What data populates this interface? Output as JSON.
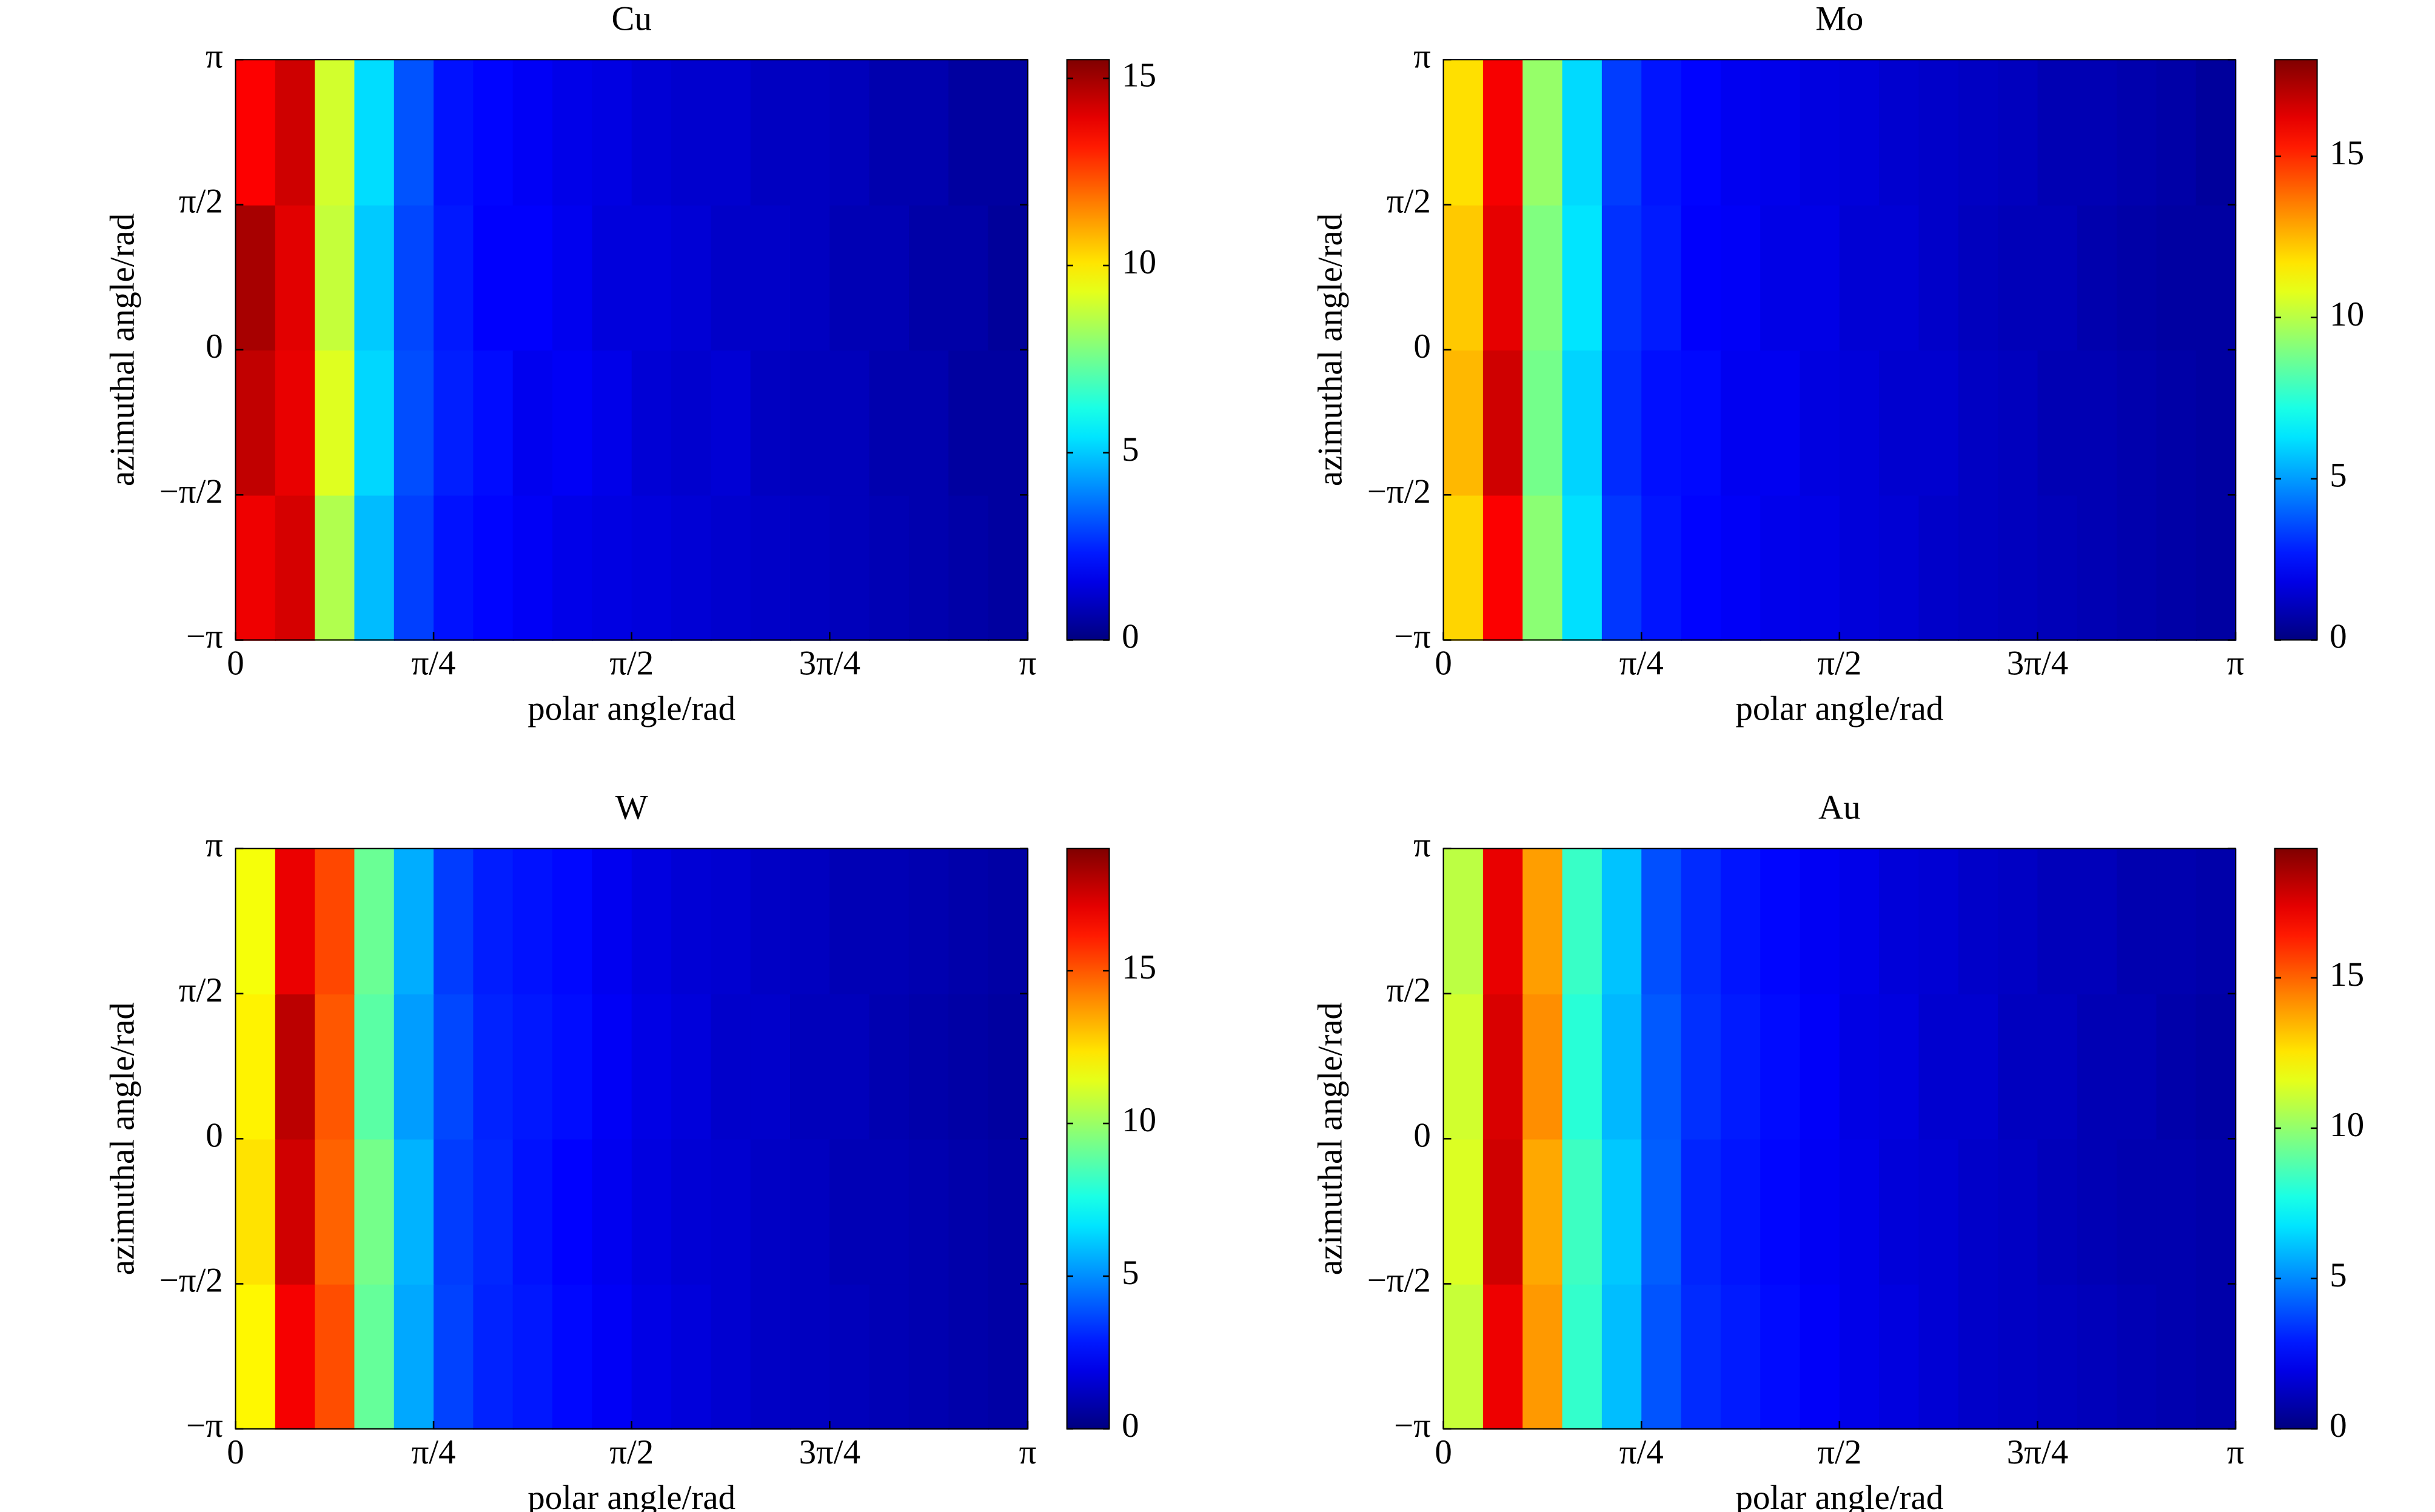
{
  "chart_data": [
    {
      "type": "heatmap",
      "title": "Cu",
      "xlabel": "polar angle/rad",
      "ylabel": "azimuthal angle/rad",
      "colormap": "jet",
      "xlim": [
        0,
        3.1416
      ],
      "ylim": [
        -3.1416,
        3.1416
      ],
      "xticks": [
        0,
        {
          "value": 0.7854,
          "label": "π/4"
        },
        {
          "value": 1.5708,
          "label": "π/2"
        },
        {
          "value": 2.3562,
          "label": "3π/4"
        },
        {
          "value": 3.1416,
          "label": "π"
        }
      ],
      "yticks": [
        {
          "value": -3.1416,
          "label": "−π"
        },
        {
          "value": -1.5708,
          "label": "−π/2"
        },
        0,
        {
          "value": 1.5708,
          "label": "π/2"
        },
        {
          "value": 3.1416,
          "label": "π"
        }
      ],
      "clim": [
        0,
        15.5
      ],
      "cticks": [
        0,
        5,
        10,
        15
      ],
      "z": [
        [
          13.8,
          14.2,
          8.5,
          4.8,
          2.9,
          2.2,
          2.0,
          1.8,
          1.6,
          1.5,
          1.4,
          1.3,
          1.2,
          1.1,
          1.0,
          0.9,
          0.8,
          0.7,
          0.6,
          0.5
        ],
        [
          14.5,
          13.9,
          9.2,
          5.2,
          3.1,
          2.4,
          2.1,
          1.7,
          1.8,
          1.6,
          1.3,
          1.2,
          1.3,
          1.0,
          0.9,
          0.9,
          0.7,
          0.7,
          0.5,
          0.5
        ],
        [
          14.9,
          14.0,
          8.8,
          5.0,
          3.0,
          2.3,
          1.9,
          1.9,
          1.7,
          1.4,
          1.4,
          1.3,
          1.1,
          1.1,
          1.0,
          0.8,
          0.8,
          0.6,
          0.6,
          0.4
        ],
        [
          13.6,
          14.3,
          9.0,
          5.3,
          3.2,
          2.2,
          2.0,
          1.8,
          1.6,
          1.5,
          1.3,
          1.2,
          1.2,
          1.0,
          1.0,
          0.9,
          0.7,
          0.7,
          0.5,
          0.5
        ]
      ]
    },
    {
      "type": "heatmap",
      "title": "Mo",
      "xlabel": "polar angle/rad",
      "ylabel": "azimuthal angle/rad",
      "colormap": "jet",
      "xlim": [
        0,
        3.1416
      ],
      "ylim": [
        -3.1416,
        3.1416
      ],
      "xticks": [
        0,
        {
          "value": 0.7854,
          "label": "π/4"
        },
        {
          "value": 1.5708,
          "label": "π/2"
        },
        {
          "value": 2.3562,
          "label": "3π/4"
        },
        {
          "value": 3.1416,
          "label": "π"
        }
      ],
      "yticks": [
        {
          "value": -3.1416,
          "label": "−π"
        },
        {
          "value": -1.5708,
          "label": "−π/2"
        },
        0,
        {
          "value": 1.5708,
          "label": "π/2"
        },
        {
          "value": 3.1416,
          "label": "π"
        }
      ],
      "clim": [
        0,
        18
      ],
      "cticks": [
        0,
        5,
        10,
        15
      ],
      "z": [
        [
          12.0,
          15.8,
          9.2,
          6.2,
          3.2,
          2.6,
          2.3,
          2.1,
          1.9,
          1.8,
          1.6,
          1.5,
          1.3,
          1.2,
          1.1,
          1.0,
          0.9,
          0.8,
          0.7,
          0.6
        ],
        [
          12.5,
          16.6,
          8.8,
          6.0,
          3.0,
          2.5,
          2.4,
          2.0,
          2.0,
          1.7,
          1.6,
          1.4,
          1.4,
          1.2,
          1.1,
          0.9,
          0.9,
          0.8,
          0.7,
          0.6
        ],
        [
          12.2,
          16.2,
          9.0,
          6.3,
          3.1,
          2.7,
          2.2,
          2.1,
          1.8,
          1.8,
          1.5,
          1.5,
          1.3,
          1.1,
          1.0,
          1.0,
          0.8,
          0.7,
          0.6,
          0.6
        ],
        [
          11.8,
          15.9,
          9.4,
          6.1,
          3.3,
          2.6,
          2.3,
          2.0,
          1.9,
          1.7,
          1.6,
          1.4,
          1.3,
          1.2,
          1.1,
          0.9,
          0.9,
          0.8,
          0.7,
          0.5
        ]
      ]
    },
    {
      "type": "heatmap",
      "title": "W",
      "xlabel": "polar angle/rad",
      "ylabel": "azimuthal angle/rad",
      "colormap": "jet",
      "xlim": [
        0,
        3.1416
      ],
      "ylim": [
        -3.1416,
        3.1416
      ],
      "xticks": [
        0,
        {
          "value": 0.7854,
          "label": "π/4"
        },
        {
          "value": 1.5708,
          "label": "π/2"
        },
        {
          "value": 2.3562,
          "label": "3π/4"
        },
        {
          "value": 3.1416,
          "label": "π"
        }
      ],
      "yticks": [
        {
          "value": -3.1416,
          "label": "−π"
        },
        {
          "value": -1.5708,
          "label": "−π/2"
        },
        0,
        {
          "value": 1.5708,
          "label": "π/2"
        },
        {
          "value": 3.1416,
          "label": "π"
        }
      ],
      "clim": [
        0,
        19
      ],
      "cticks": [
        0,
        5,
        10,
        15
      ],
      "z": [
        [
          12.0,
          16.8,
          15.2,
          9.0,
          5.5,
          3.6,
          3.0,
          2.8,
          2.5,
          2.2,
          1.9,
          1.7,
          1.5,
          1.3,
          1.2,
          1.1,
          1.0,
          0.9,
          0.8,
          0.7
        ],
        [
          12.4,
          17.5,
          14.8,
          9.3,
          5.7,
          3.5,
          3.1,
          2.7,
          2.4,
          2.1,
          1.8,
          1.6,
          1.5,
          1.3,
          1.2,
          1.0,
          1.0,
          0.9,
          0.8,
          0.7
        ],
        [
          12.1,
          17.9,
          15.0,
          8.8,
          5.3,
          3.7,
          3.0,
          2.8,
          2.6,
          2.2,
          1.9,
          1.7,
          1.4,
          1.4,
          1.1,
          1.1,
          0.9,
          0.8,
          0.7,
          0.6
        ],
        [
          11.7,
          17.0,
          15.3,
          9.1,
          5.6,
          3.5,
          2.9,
          2.7,
          2.5,
          2.1,
          1.8,
          1.6,
          1.5,
          1.3,
          1.2,
          1.0,
          1.0,
          0.9,
          0.8,
          0.7
        ]
      ]
    },
    {
      "type": "heatmap",
      "title": "Au",
      "xlabel": "polar angle/rad",
      "ylabel": "azimuthal angle/rad",
      "colormap": "jet",
      "xlim": [
        0,
        3.1416
      ],
      "ylim": [
        -3.1416,
        3.1416
      ],
      "xticks": [
        0,
        {
          "value": 0.7854,
          "label": "π/4"
        },
        {
          "value": 1.5708,
          "label": "π/2"
        },
        {
          "value": 2.3562,
          "label": "3π/4"
        },
        {
          "value": 3.1416,
          "label": "π"
        }
      ],
      "yticks": [
        {
          "value": -3.1416,
          "label": "−π"
        },
        {
          "value": -1.5708,
          "label": "−π/2"
        },
        0,
        {
          "value": 1.5708,
          "label": "π/2"
        },
        {
          "value": 3.1416,
          "label": "π"
        }
      ],
      "clim": [
        0,
        19.3
      ],
      "cticks": [
        0,
        5,
        10,
        15
      ],
      "z": [
        [
          11.0,
          17.2,
          14.0,
          8.2,
          6.0,
          4.0,
          3.2,
          2.9,
          2.6,
          2.3,
          2.0,
          1.8,
          1.6,
          1.4,
          1.3,
          1.2,
          1.1,
          1.0,
          0.9,
          0.8
        ],
        [
          11.4,
          17.8,
          13.7,
          8.4,
          6.2,
          4.2,
          3.1,
          2.8,
          2.5,
          2.2,
          2.0,
          1.7,
          1.6,
          1.4,
          1.3,
          1.1,
          1.0,
          0.9,
          0.9,
          0.8
        ],
        [
          11.2,
          17.6,
          14.2,
          8.0,
          5.9,
          4.1,
          3.3,
          2.9,
          2.6,
          2.3,
          1.9,
          1.8,
          1.5,
          1.5,
          1.2,
          1.2,
          1.0,
          1.0,
          0.8,
          0.7
        ],
        [
          10.8,
          17.3,
          13.9,
          8.3,
          6.1,
          3.9,
          3.2,
          2.8,
          2.5,
          2.2,
          2.0,
          1.7,
          1.6,
          1.4,
          1.3,
          1.1,
          1.1,
          0.9,
          0.9,
          0.8
        ]
      ]
    }
  ]
}
